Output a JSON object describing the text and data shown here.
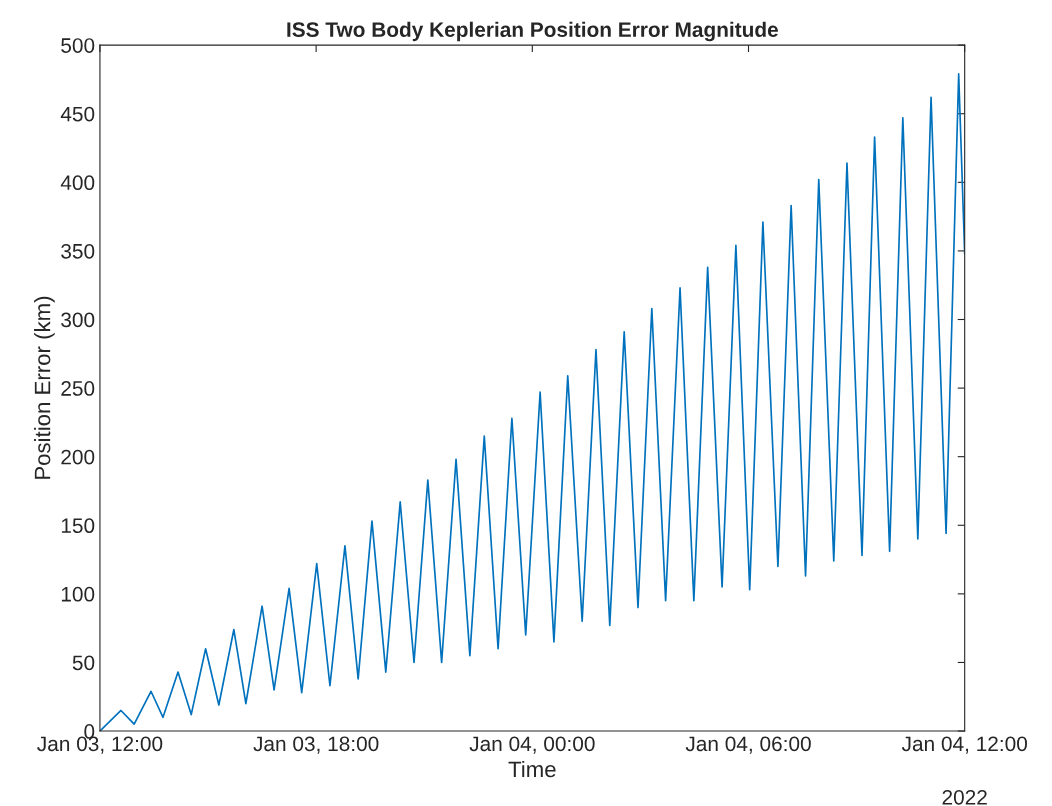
{
  "chart_data": {
    "type": "line",
    "title": "ISS Two Body Keplerian Position Error Magnitude",
    "xlabel": "Time",
    "ylabel": "Position Error (km)",
    "x": [
      "2022-01-03T12:00",
      "2022-01-03T12:35",
      "2022-01-03T12:57",
      "2022-01-03T13:25",
      "2022-01-03T13:45",
      "2022-01-03T14:10",
      "2022-01-03T14:32",
      "2022-01-03T14:56",
      "2022-01-03T15:18",
      "2022-01-03T15:43",
      "2022-01-03T16:03",
      "2022-01-03T16:30",
      "2022-01-03T16:50",
      "2022-01-03T17:15",
      "2022-01-03T17:36",
      "2022-01-03T18:01",
      "2022-01-03T18:23",
      "2022-01-03T18:48",
      "2022-01-03T19:10",
      "2022-01-03T19:33",
      "2022-01-03T19:56",
      "2022-01-03T20:20",
      "2022-01-03T20:43",
      "2022-01-03T21:06",
      "2022-01-03T21:29",
      "2022-01-03T21:53",
      "2022-01-03T22:16",
      "2022-01-03T22:40",
      "2022-01-03T23:03",
      "2022-01-03T23:26",
      "2022-01-03T23:49",
      "2022-01-04T00:13",
      "2022-01-04T00:36",
      "2022-01-04T00:59",
      "2022-01-04T01:23",
      "2022-01-04T01:46",
      "2022-01-04T02:09",
      "2022-01-04T02:33",
      "2022-01-04T02:56",
      "2022-01-04T03:19",
      "2022-01-04T03:42",
      "2022-01-04T04:06",
      "2022-01-04T04:29",
      "2022-01-04T04:52",
      "2022-01-04T05:16",
      "2022-01-04T05:39",
      "2022-01-04T06:02",
      "2022-01-04T06:24",
      "2022-01-04T06:49",
      "2022-01-04T07:11",
      "2022-01-04T07:35",
      "2022-01-04T07:57",
      "2022-01-04T08:22",
      "2022-01-04T08:44",
      "2022-01-04T09:09",
      "2022-01-04T09:30",
      "2022-01-04T09:55",
      "2022-01-04T10:17",
      "2022-01-04T10:42",
      "2022-01-04T11:04",
      "2022-01-04T11:29",
      "2022-01-04T11:50",
      "2022-01-04T12:00"
    ],
    "series": [
      {
        "color": "#0072bd",
        "values": [
          0,
          15,
          5,
          29,
          10,
          43,
          12,
          60,
          19,
          74,
          20,
          91,
          30,
          104,
          28,
          122,
          33,
          135,
          38,
          153,
          43,
          167,
          50,
          183,
          50,
          198,
          55,
          215,
          60,
          228,
          70,
          247,
          65,
          259,
          80,
          278,
          77,
          291,
          90,
          308,
          95,
          323,
          95,
          338,
          105,
          354,
          103,
          371,
          120,
          383,
          113,
          402,
          124,
          414,
          128,
          433,
          131,
          447,
          140,
          462,
          144,
          479,
          348
        ]
      }
    ],
    "xlim": [
      "2022-01-03T12:00",
      "2022-01-04T12:00"
    ],
    "xticks": [
      {
        "value": "2022-01-03T12:00",
        "label": "Jan 03, 12:00"
      },
      {
        "value": "2022-01-03T18:00",
        "label": "Jan 03, 18:00"
      },
      {
        "value": "2022-01-04T00:00",
        "label": "Jan 04, 00:00"
      },
      {
        "value": "2022-01-04T06:00",
        "label": "Jan 04, 06:00"
      },
      {
        "value": "2022-01-04T12:00",
        "label": "Jan 04, 12:00"
      }
    ],
    "ylim": [
      0,
      500
    ],
    "yticks": [
      0,
      50,
      100,
      150,
      200,
      250,
      300,
      350,
      400,
      450,
      500
    ],
    "annotations": [
      "2022"
    ],
    "grid": false,
    "legend": false,
    "marker": "none",
    "line_style": "solid"
  }
}
